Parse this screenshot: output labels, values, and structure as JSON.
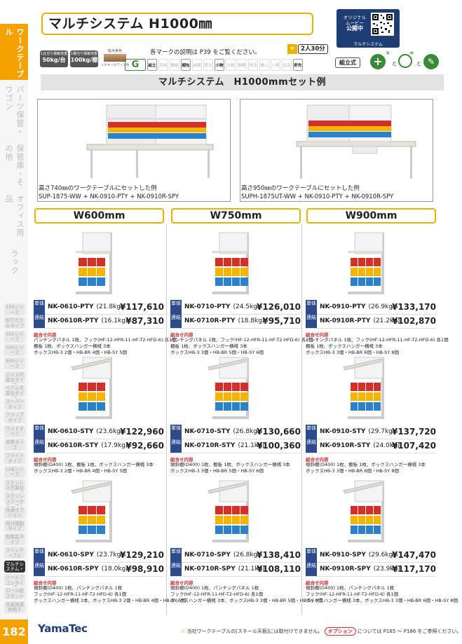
{
  "sidebar": {
    "main": [
      {
        "label": "ワークテーブル",
        "active": true
      },
      {
        "label": "パーツ保管・ワゴン",
        "active": false
      },
      {
        "label": "保管庫・その他",
        "active": false
      },
      {
        "label": "オフィス用品",
        "active": false
      },
      {
        "label": "ラック",
        "active": false
      }
    ],
    "sub": [
      "150シリーズ",
      "折りたたみタイプ",
      "300シリーズ",
      "500シリーズ",
      "800シリーズ",
      "バイス作業台タイプ",
      "ベアル作業台タイプ",
      "スーパータイプ",
      "フラップタイプ",
      "ワイドタイプ",
      "昇降タイプ",
      "フライトタイプ",
      "LABシリーズ",
      "ステンレス作業台シリーズ",
      "ステンレスワークテーブル",
      "共通オプション",
      "部分樹脂タイプ",
      "耐薬品タイプ",
      "ラインテーブル",
      "マルチシステム・棚",
      "ツールワゴンタイプ",
      "ロール紙スタンド",
      "作業用補助椅子"
    ],
    "active_sub": "マルチシステム・棚"
  },
  "page_number": "182",
  "header": {
    "title": "マルチシステム H1000㎜",
    "qr": {
      "line1": "オリジナル",
      "line2": "ムービー",
      "line3": "公開中",
      "caption": "マルチシステム"
    },
    "load_badges": [
      {
        "top": "1台当り積載荷重",
        "value": "50kg/台"
      },
      {
        "top": "1棚当り積載荷重",
        "value": "100kg/棚"
      }
    ],
    "color_label": "粘木板色",
    "color_name": "シルキーホワイト色",
    "marks_note": "各マークの説明は P39 をご覧ください。",
    "marks": [
      {
        "label": "G",
        "on": true
      },
      {
        "label": "組立",
        "on": true
      },
      {
        "label": "完成",
        "on": false
      },
      {
        "label": "要組",
        "on": false
      },
      {
        "label": "梱包",
        "on": true
      },
      {
        "label": "納期",
        "on": false
      },
      {
        "label": "受注",
        "on": false
      },
      {
        "label": "小物",
        "on": true
      },
      {
        "label": "大物",
        "on": false
      },
      {
        "label": "開梱",
        "on": false
      },
      {
        "label": "特注",
        "on": false
      },
      {
        "label": "搬入",
        "on": false
      },
      {
        "label": "入替",
        "on": false
      },
      {
        "label": "返品",
        "on": false
      },
      {
        "label": "軒先",
        "on": true
      }
    ],
    "work_badge": "2人30分",
    "assembly_label": "組立式",
    "tools": [
      "+②",
      "⑩"
    ]
  },
  "section_title": "マルチシステム　H1000mmセット例",
  "examples": [
    {
      "caption": "高さ740㎜のワークテーブルにセットした例",
      "codes": "SUP-1875-WW + NK-0910-PTY + NK-0910R-SPY"
    },
    {
      "caption": "高さ950㎜のワークテーブルにセットした例",
      "codes": "SUPH-1875UT-WW + NK-0910-PTY + NK-0910R-SPY"
    }
  ],
  "tags": {
    "single": "単体",
    "linked": "連結"
  },
  "combo_heading": "組合せ内容",
  "columns": [
    {
      "width": "W600mm",
      "groups": [
        {
          "single_code": "NK-0610-PTY",
          "single_weight": "(21.8kg)",
          "single_price": "¥117,610",
          "linked_code": "NK-0610R-PTY",
          "linked_weight": "(16.1kg)",
          "linked_price": "¥87,310",
          "combo": [
            "パンチングパネル 1枚、フック(HF-12-HFR-11-HF-T2-HFD-6) 各1個",
            "棚板 1枚、ボックスハンガー横桟 3本",
            "ボックスHB-3 2個・HB-BR 4個・HB-SY 5個"
          ]
        },
        {
          "single_code": "NK-0610-STY",
          "single_weight": "(23.6kg)",
          "single_price": "¥122,960",
          "linked_code": "NK-0610R-STY",
          "linked_weight": "(17.9kg)",
          "linked_price": "¥92,660",
          "combo": [
            "傾斜棚(D400) 1枚、棚板 1枚、ボックスハンガー横桟 3本",
            "ボックスHB-3 2個・HB-BR 4個・HB-SY 5個"
          ]
        },
        {
          "single_code": "NK-0610-SPY",
          "single_weight": "(23.7kg)",
          "single_price": "¥129,210",
          "linked_code": "NK-0610R-SPY",
          "linked_weight": "(18.0kg)",
          "linked_price": "¥98,910",
          "combo": [
            "傾斜棚(D400) 1枚、パンチングパネル 1枚",
            "フック(HF-12-HFR-11-HF-T2-HFD-6) 各1個",
            "ボックスハンガー横桟 3本、ボックスHB-3 2個・HB-BR 4個・HB-SY 5個"
          ]
        }
      ]
    },
    {
      "width": "W750mm",
      "groups": [
        {
          "single_code": "NK-0710-PTY",
          "single_weight": "(24.5kg)",
          "single_price": "¥126,010",
          "linked_code": "NK-0710R-PTY",
          "linked_weight": "(18.8kg)",
          "linked_price": "¥95,710",
          "combo": [
            "パンチングパネル 1枚、フック(HF-12-HFR-11-HF-T2-HFD-6) 各1個",
            "棚板 1枚、ボックスハンガー横桟 3本",
            "ボックスHB-3 3個・HB-BR 5個・HB-SY 6個"
          ]
        },
        {
          "single_code": "NK-0710-STY",
          "single_weight": "(26.8kg)",
          "single_price": "¥130,660",
          "linked_code": "NK-0710R-STY",
          "linked_weight": "(21.1kg)",
          "linked_price": "¥100,360",
          "combo": [
            "傾斜棚(D400) 1枚、棚板 1枚、ボックスハンガー横桟 3本",
            "ボックスHB-3 3個・HB-BR 5個・HB-SY 6個"
          ]
        },
        {
          "single_code": "NK-0710-SPY",
          "single_weight": "(26.8kg)",
          "single_price": "¥138,410",
          "linked_code": "NK-0710R-SPY",
          "linked_weight": "(21.1kg)",
          "linked_price": "¥108,110",
          "combo": [
            "傾斜棚(D400) 1枚、パンチングパネル 1枚",
            "フック(HF-12-HFR-11-HF-T2-HFD-6) 各1個",
            "ボックスハンガー横桟 3本、ボックスHB-3 3個・HB-BR 5個・HB-SY 6個"
          ]
        }
      ]
    },
    {
      "width": "W900mm",
      "groups": [
        {
          "single_code": "NK-0910-PTY",
          "single_weight": "(26.9kg)",
          "single_price": "¥133,170",
          "linked_code": "NK-0910R-PTY",
          "linked_weight": "(21.2kg)",
          "linked_price": "¥102,870",
          "combo": [
            "パンチングパネル 1枚、フック(HF-12-HFR-11-HF-T2-HFD-6) 各1個",
            "棚板 1枚、ボックスハンガー横桟 3本",
            "ボックスHB-3 3個・HB-BR 6個・HB-SY 8個"
          ]
        },
        {
          "single_code": "NK-0910-STY",
          "single_weight": "(29.7kg)",
          "single_price": "¥137,720",
          "linked_code": "NK-0910R-STY",
          "linked_weight": "(24.0kg)",
          "linked_price": "¥107,420",
          "combo": [
            "傾斜棚(D400) 1枚、棚板 1枚、ボックスハンガー横桟 3本",
            "ボックスHB-3 3個・HB-BR 6個・HB-SY 8個"
          ]
        },
        {
          "single_code": "NK-0910-SPY",
          "single_weight": "(29.6kg)",
          "single_price": "¥147,470",
          "linked_code": "NK-0910R-SPY",
          "linked_weight": "(23.9kg)",
          "linked_price": "¥117,170",
          "combo": [
            "傾斜棚(D400) 1枚、パンチングパネル 1枚",
            "フック(HF-12-HFR-11-HF-T2-HFD-6) 各1個",
            "ボックスハンガー横桟 3本、ボックスHB-3 3個・HB-BR 6個・HB-SY 8個"
          ]
        }
      ]
    }
  ],
  "footer": {
    "logo": "YamaTec",
    "note_pre": "当社ワークテーブルの[スチール天板]には取付けできません。",
    "option_label": "オプション",
    "note_post": "については P185 ～ P186 をご参照ください。"
  },
  "colors": {
    "accent": "#f5a100",
    "navy": "#1d3d74",
    "tag": "#2d4a8a",
    "gold": "#e8b300"
  }
}
